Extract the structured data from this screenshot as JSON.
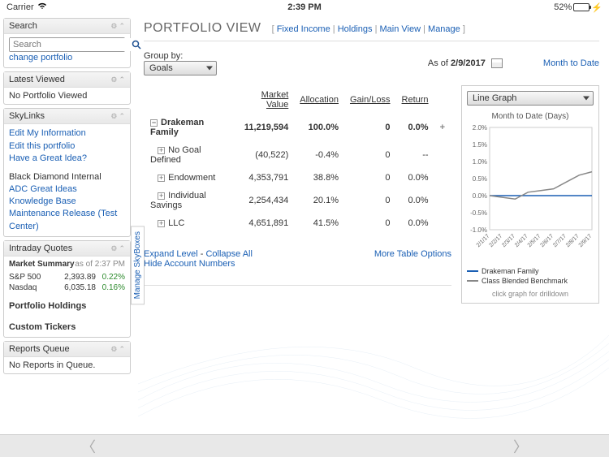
{
  "status": {
    "carrier": "Carrier",
    "time": "2:39 PM",
    "battery": "52%"
  },
  "sidebar": {
    "search": {
      "title": "Search",
      "placeholder": "Search",
      "link": "change portfolio"
    },
    "latest": {
      "title": "Latest Viewed",
      "empty": "No Portfolio Viewed"
    },
    "skylinks": {
      "title": "SkyLinks",
      "links": [
        "Edit My Information",
        "Edit this portfolio",
        "Have a Great Idea?"
      ],
      "section": "Black Diamond Internal",
      "links2": [
        "ADC Great Ideas",
        "Knowledge Base",
        "Maintenance Release (Test Center)"
      ]
    },
    "quotes": {
      "title": "Intraday Quotes",
      "summary_label": "Market Summary",
      "as_of": "as of 2:37 PM",
      "rows": [
        {
          "name": "S&P 500",
          "price": "2,393.89",
          "change": "0.22%"
        },
        {
          "name": "Nasdaq",
          "price": "6,035.18",
          "change": "0.16%"
        }
      ],
      "holdings": "Portfolio Holdings",
      "custom": "Custom Tickers"
    },
    "reports": {
      "title": "Reports Queue",
      "empty": "No Reports in Queue."
    }
  },
  "page": {
    "title": "PORTFOLIO VIEW",
    "nav": [
      "Fixed Income",
      "Holdings",
      "Main View",
      "Manage"
    ],
    "group_by_label": "Group by:",
    "group_by_value": "Goals",
    "as_of_label": "As of",
    "as_of_date": "2/9/2017",
    "mtd_link": "Month to Date"
  },
  "table": {
    "headers": [
      "",
      "Market Value",
      "Allocation",
      "Gain/Loss",
      "Return"
    ],
    "rows": [
      {
        "name": "Drakeman Family",
        "mv": "11,219,594",
        "alloc": "100.0%",
        "gl": "0",
        "ret": "0.0%",
        "bold": true,
        "collapse": true,
        "plus": false
      },
      {
        "name": "No Goal Defined",
        "mv": "(40,522)",
        "alloc": "-0.4%",
        "gl": "0",
        "ret": "--",
        "indent": true
      },
      {
        "name": "Endowment",
        "mv": "4,353,791",
        "alloc": "38.8%",
        "gl": "0",
        "ret": "0.0%",
        "indent": true
      },
      {
        "name": "Individual Savings",
        "mv": "2,254,434",
        "alloc": "20.1%",
        "gl": "0",
        "ret": "0.0%",
        "indent": true
      },
      {
        "name": "LLC",
        "mv": "4,651,891",
        "alloc": "41.5%",
        "gl": "0",
        "ret": "0.0%",
        "indent": true
      }
    ],
    "footer": {
      "expand": "Expand Level",
      "collapse": "Collapse All",
      "hide": "Hide Account Numbers",
      "more": "More Table Options"
    }
  },
  "chart": {
    "dropdown": "Line Graph",
    "title": "Month to Date (Days)",
    "y_ticks": [
      "2.0%",
      "1.5%",
      "1.0%",
      "0.5%",
      "0.0%",
      "-0.5%",
      "-1.0%"
    ],
    "x_ticks": [
      "2/1/17",
      "2/2/17",
      "2/3/17",
      "2/4/17",
      "2/5/17",
      "2/6/17",
      "2/7/17",
      "2/8/17",
      "2/9/17"
    ],
    "series": [
      {
        "name": "Drakeman Family",
        "color": "#1a5fb4",
        "points": [
          [
            0,
            0
          ],
          [
            1,
            0
          ],
          [
            2,
            0
          ],
          [
            3,
            0
          ],
          [
            4,
            0
          ],
          [
            5,
            0
          ],
          [
            6,
            0
          ],
          [
            7,
            0
          ],
          [
            8,
            0
          ]
        ]
      },
      {
        "name": "Class Blended Benchmark",
        "color": "#888",
        "points": [
          [
            0,
            0
          ],
          [
            1,
            -0.05
          ],
          [
            2,
            -0.1
          ],
          [
            3,
            0.1
          ],
          [
            4,
            0.15
          ],
          [
            5,
            0.2
          ],
          [
            6,
            0.4
          ],
          [
            7,
            0.6
          ],
          [
            8,
            0.7
          ]
        ]
      }
    ],
    "y_min": -1.0,
    "y_max": 2.0,
    "note": "click graph for drilldown"
  },
  "manage_tab": "Manage SkyBoxes"
}
